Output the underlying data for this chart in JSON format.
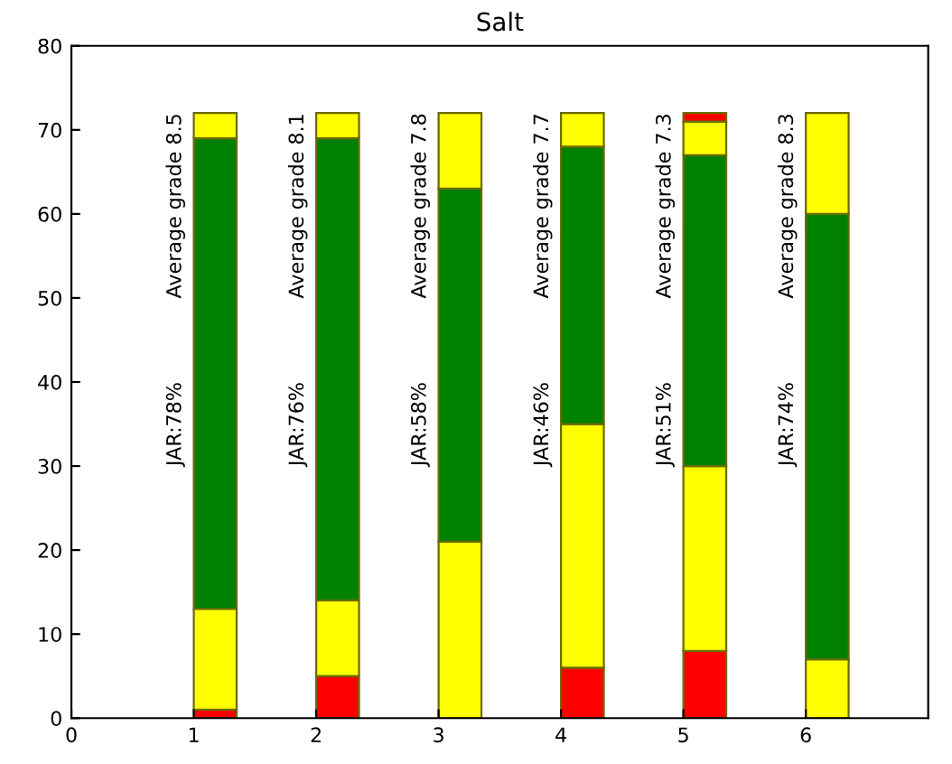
{
  "chart_data": {
    "type": "bar",
    "title": "Salt",
    "stacked": true,
    "x": [
      1.175,
      2.175,
      3.175,
      4.175,
      5.175,
      6.175
    ],
    "series": [
      {
        "color": "#ff0000",
        "values": [
          1,
          5,
          null,
          6,
          8,
          null
        ]
      },
      {
        "color": "#ffff00",
        "values": [
          12,
          9,
          21,
          29,
          22,
          7
        ]
      },
      {
        "color": "#008000",
        "values": [
          56,
          55,
          42,
          33,
          37,
          53
        ]
      },
      {
        "color": "#ffff00",
        "values": [
          3,
          3,
          9,
          4,
          4,
          12
        ]
      },
      {
        "color": "#ff0000",
        "values": [
          null,
          null,
          null,
          null,
          1,
          null
        ]
      }
    ],
    "xlim": [
      0,
      7
    ],
    "xticks": [
      0,
      1,
      2,
      3,
      4,
      5,
      6
    ],
    "ylim": [
      0,
      80
    ],
    "yticks": [
      0,
      10,
      20,
      30,
      40,
      50,
      60,
      70,
      80
    ],
    "grid": false,
    "annotations": [
      "Average grade 8.5",
      "JAR:78%",
      "Average grade 8.1",
      "JAR:76%",
      "Average grade 7.8",
      "JAR:58%",
      "Average grade 7.7",
      "JAR:46%",
      "Average grade 7.3",
      "JAR:51%",
      "Average grade 8.3",
      "JAR:74%"
    ]
  }
}
